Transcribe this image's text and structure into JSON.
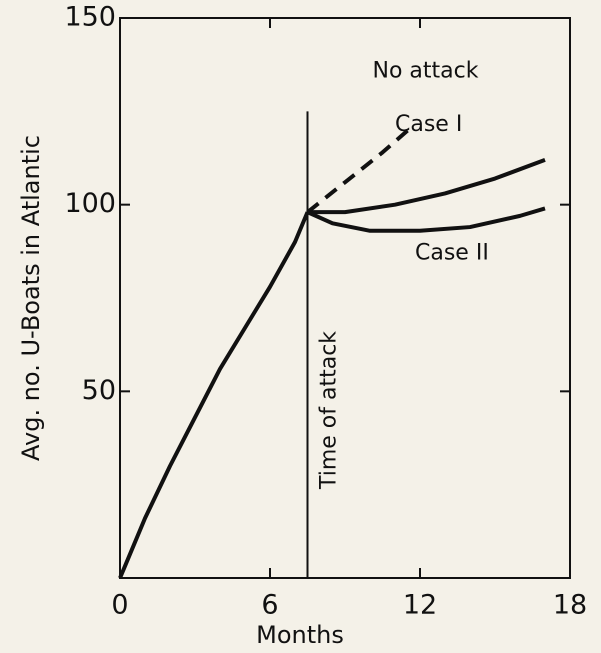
{
  "chart_data": {
    "type": "line",
    "xlabel": "Months",
    "ylabel": "Avg. no. U-Boats in Atlantic",
    "xlim": [
      0,
      18
    ],
    "xticks": [
      0,
      6,
      12,
      18
    ],
    "ylim": [
      0,
      150
    ],
    "yticks": [
      50,
      100,
      150
    ],
    "annotation": {
      "text": "Time of attack",
      "x": 7.5,
      "y": 125
    },
    "series": [
      {
        "name": null,
        "color": "#111111",
        "style": "solid",
        "x": [
          0,
          1,
          2,
          3,
          4,
          5,
          6,
          7,
          7.5
        ],
        "values": [
          0,
          16,
          30,
          43,
          56,
          67,
          78,
          90,
          98
        ]
      },
      {
        "name": "No attack",
        "color": "#111111",
        "style": "dashed",
        "x": [
          7.5,
          9,
          10.5,
          11.7
        ],
        "values": [
          98,
          106,
          114,
          121
        ]
      },
      {
        "name": "Case I",
        "color": "#111111",
        "style": "solid",
        "x": [
          7.5,
          9,
          11,
          13,
          15,
          17
        ],
        "values": [
          98,
          98,
          100,
          103,
          107,
          112
        ]
      },
      {
        "name": "Case II",
        "color": "#111111",
        "style": "solid",
        "x": [
          7.5,
          8.5,
          10,
          12,
          14,
          16,
          17
        ],
        "values": [
          98,
          95,
          93,
          93,
          94,
          97,
          99
        ]
      }
    ]
  }
}
